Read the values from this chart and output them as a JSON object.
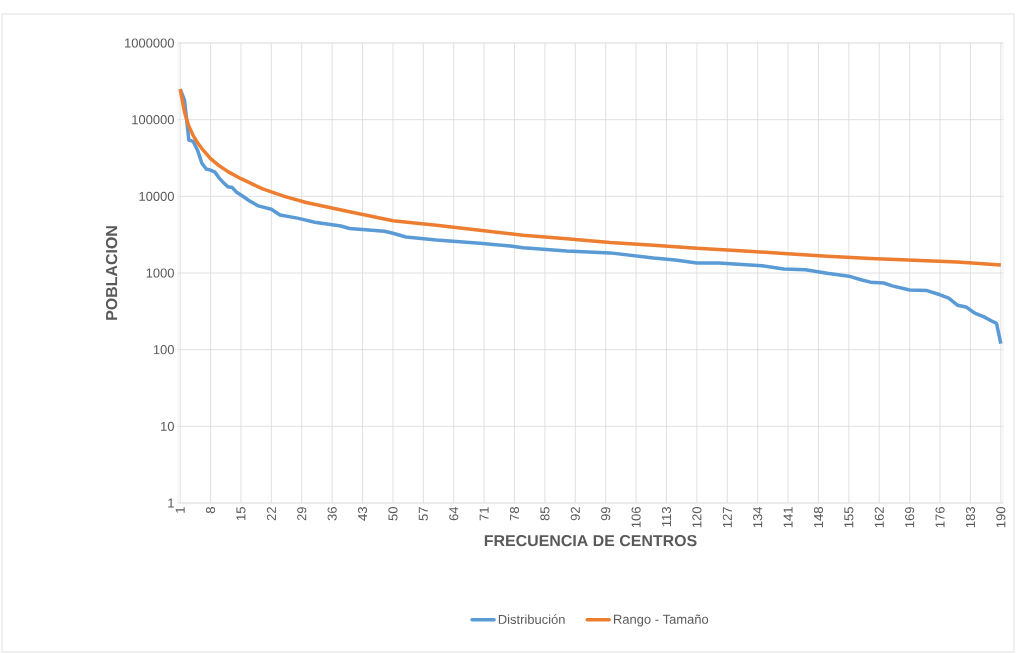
{
  "chart_data": {
    "type": "line",
    "xlabel": "FRECUENCIA DE CENTROS",
    "ylabel": "POBLACION",
    "xlim": [
      0.5,
      190.5
    ],
    "xticks": [
      1,
      8,
      15,
      22,
      29,
      36,
      43,
      50,
      57,
      64,
      71,
      78,
      85,
      92,
      99,
      106,
      113,
      120,
      127,
      134,
      141,
      148,
      155,
      162,
      169,
      176,
      183,
      190
    ],
    "ylim": [
      1,
      1000000
    ],
    "yticks": [
      1,
      10,
      100,
      1000,
      10000,
      100000,
      1000000
    ],
    "log": "y",
    "grid": true,
    "legend": "bottom",
    "series": [
      {
        "name": "Distribución",
        "color": "#5b9bd5",
        "x": [
          1,
          2,
          3,
          4,
          5,
          6,
          7,
          8,
          9,
          10,
          11,
          12,
          13,
          14,
          15,
          17,
          19,
          22,
          24,
          28,
          32,
          36,
          38,
          40,
          48,
          50,
          53,
          60,
          70,
          77,
          80,
          90,
          100,
          110,
          115,
          120,
          125,
          135,
          140,
          145,
          150,
          155,
          158,
          160,
          163,
          165,
          169,
          173,
          176,
          178,
          180,
          182,
          184,
          186,
          188,
          189,
          190
        ],
        "values": [
          250000,
          180000,
          54000,
          52000,
          40000,
          27000,
          22700,
          22000,
          20700,
          17300,
          15000,
          13300,
          13000,
          11300,
          10400,
          8700,
          7500,
          6800,
          5700,
          5200,
          4600,
          4250,
          4100,
          3800,
          3500,
          3300,
          2950,
          2700,
          2450,
          2250,
          2130,
          1930,
          1830,
          1570,
          1480,
          1350,
          1350,
          1240,
          1130,
          1100,
          990,
          910,
          810,
          760,
          740,
          680,
          600,
          590,
          520,
          470,
          380,
          360,
          300,
          270,
          235,
          220,
          120
        ]
      },
      {
        "name": "Rango - Tamaño",
        "color": "#ed7d31",
        "x": [
          1,
          2,
          3,
          4,
          5,
          6,
          8,
          10,
          12,
          15,
          20,
          25,
          30,
          40,
          50,
          60,
          70,
          80,
          90,
          100,
          110,
          120,
          130,
          140,
          150,
          160,
          170,
          180,
          190
        ],
        "values": [
          250000,
          125000,
          82000,
          62000,
          50000,
          42000,
          31000,
          25000,
          21000,
          17000,
          12500,
          10000,
          8300,
          6300,
          4800,
          4200,
          3600,
          3100,
          2800,
          2500,
          2300,
          2100,
          1950,
          1800,
          1650,
          1550,
          1470,
          1390,
          1270
        ]
      }
    ]
  }
}
